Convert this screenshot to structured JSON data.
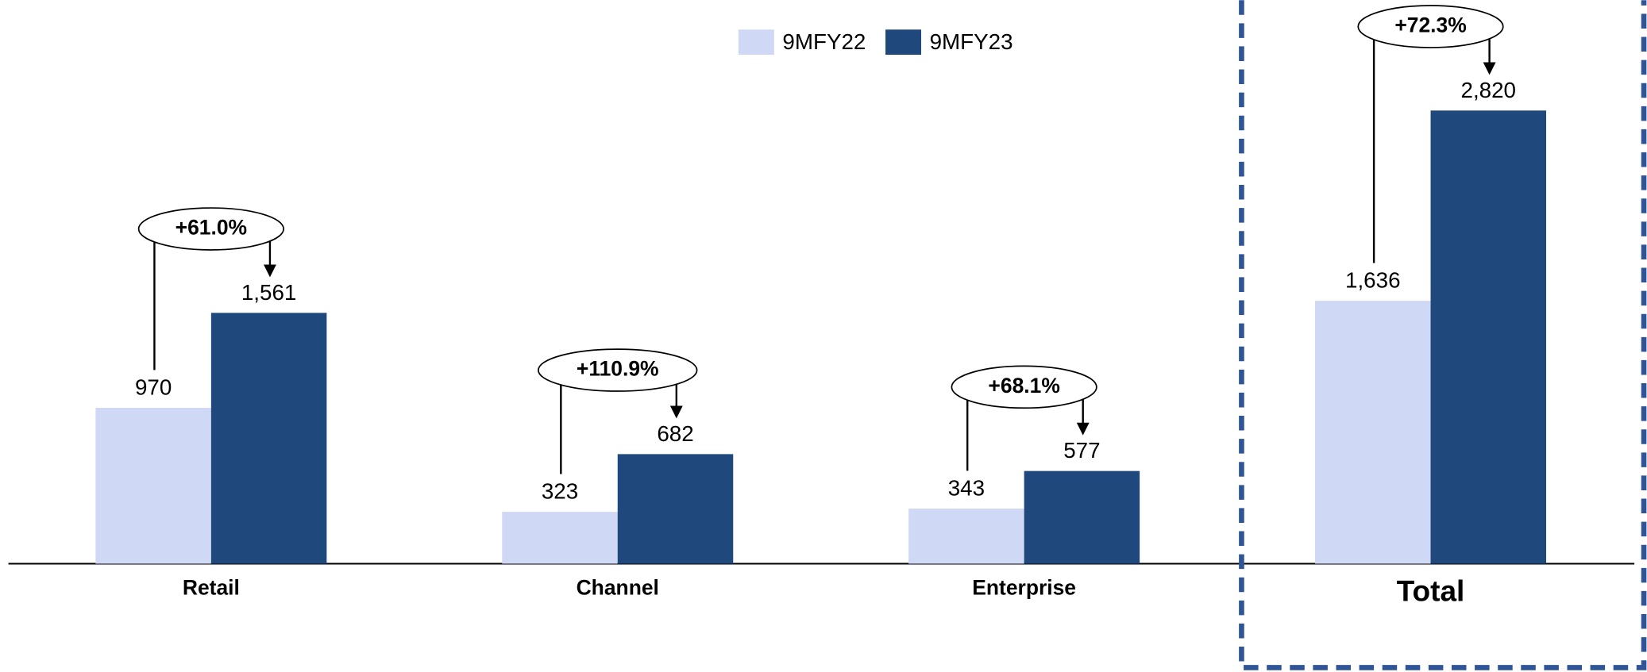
{
  "chart_data": {
    "type": "bar",
    "categories": [
      "Retail",
      "Channel",
      "Enterprise",
      "Total"
    ],
    "series": [
      {
        "name": "9MFY22",
        "color": "#cfd8f5",
        "values": [
          970,
          323,
          343,
          1636
        ],
        "value_labels": [
          "970",
          "323",
          "343",
          "1,636"
        ]
      },
      {
        "name": "9MFY23",
        "color": "#1f497d",
        "values": [
          1561,
          682,
          577,
          2820
        ],
        "value_labels": [
          "1,561",
          "682",
          "577",
          "2,820"
        ]
      }
    ],
    "annotations": [
      "+61.0%",
      "+110.9%",
      "+68.1%",
      "+72.3%"
    ],
    "ylim": [
      0,
      3500
    ],
    "legend": "top"
  }
}
